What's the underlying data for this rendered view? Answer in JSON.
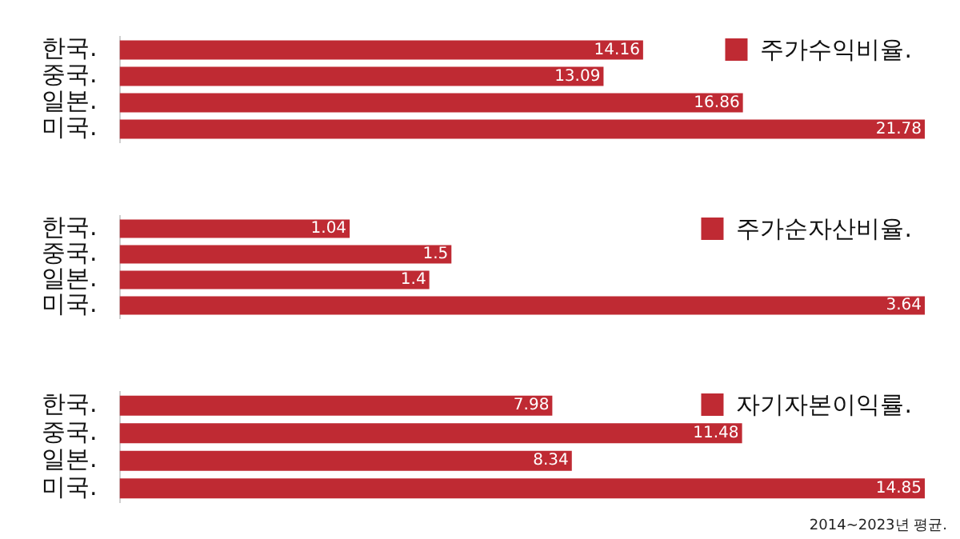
{
  "chart_data": [
    {
      "type": "bar",
      "orientation": "horizontal",
      "categories": [
        "한국.",
        "중국.",
        "일본.",
        "미국."
      ],
      "series": [
        {
          "name": "주가수익비율.",
          "color": "#bf2a33",
          "values": [
            14.16,
            13.09,
            16.86,
            21.78
          ]
        }
      ],
      "data_labels": true,
      "legend": "top right",
      "tick_labels": "y",
      "grid": false
    },
    {
      "type": "bar",
      "orientation": "horizontal",
      "categories": [
        "한국.",
        "중국.",
        "일본.",
        "미국."
      ],
      "series": [
        {
          "name": "주가순자산비율.",
          "color": "#bf2a33",
          "values": [
            1.04,
            1.5,
            1.4,
            3.64
          ]
        }
      ],
      "data_labels": true,
      "legend": "top right",
      "tick_labels": "y",
      "grid": false
    },
    {
      "type": "bar",
      "orientation": "horizontal",
      "categories": [
        "한국.",
        "중국.",
        "일본.",
        "미국."
      ],
      "series": [
        {
          "name": "자기자본이익률.",
          "color": "#bf2a33",
          "values": [
            7.98,
            11.48,
            8.34,
            14.85
          ]
        }
      ],
      "data_labels": true,
      "legend": "top right",
      "tick_labels": "y",
      "grid": false,
      "annotations": [
        "2014~2023년 평균."
      ]
    }
  ]
}
